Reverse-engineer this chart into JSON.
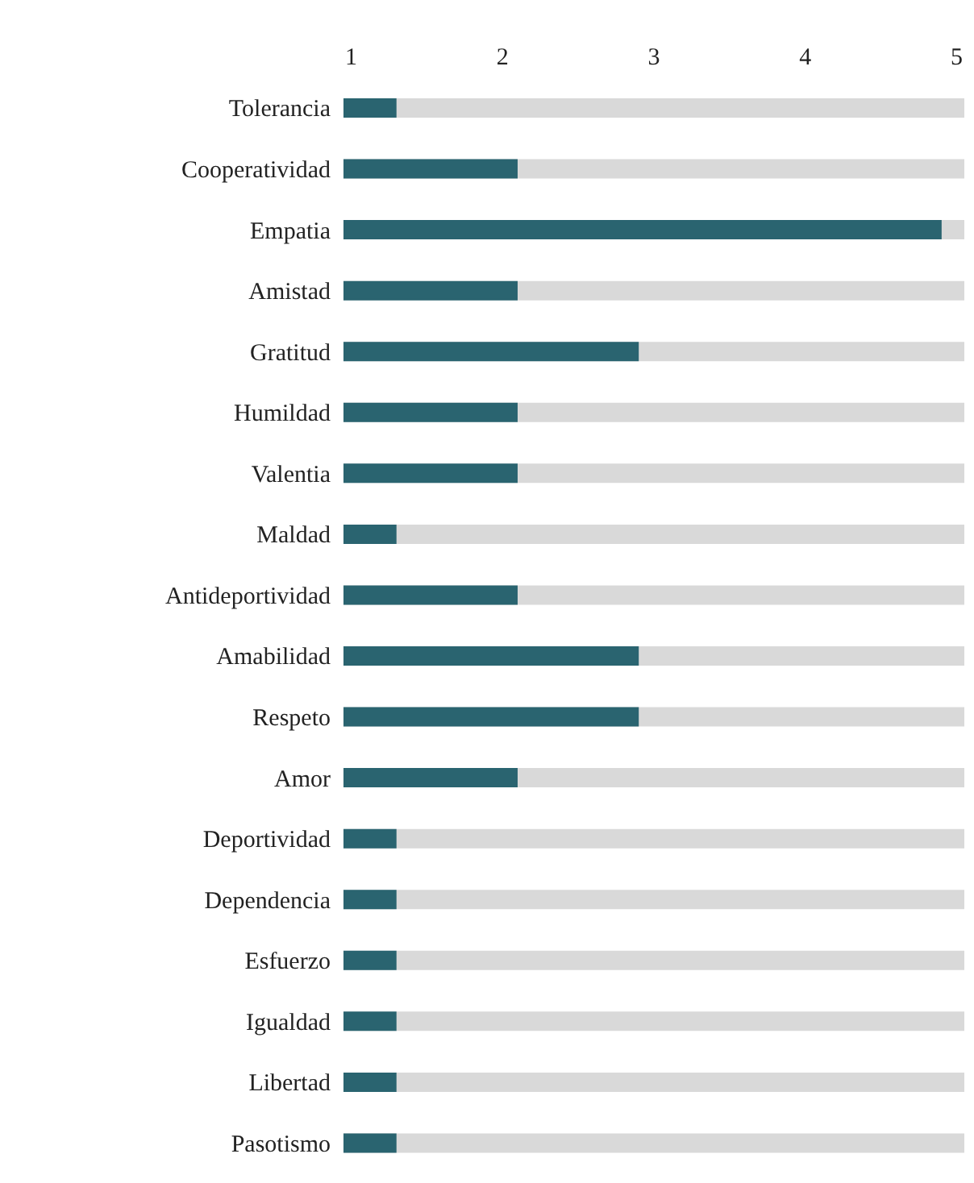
{
  "chart_data": {
    "type": "bar",
    "orientation": "horizontal",
    "categories": [
      "Tolerancia",
      "Cooperatividad",
      "Empatia",
      "Amistad",
      "Gratitud",
      "Humildad",
      "Valentia",
      "Maldad",
      "Antideportividad",
      "Amabilidad",
      "Respeto",
      "Amor",
      "Deportividad",
      "Dependencia",
      "Esfuerzo",
      "Igualdad",
      "Libertad",
      "Pasotismo"
    ],
    "values": [
      1.3,
      2.1,
      4.9,
      2.1,
      2.9,
      2.1,
      2.1,
      1.3,
      2.1,
      2.9,
      2.9,
      2.1,
      1.3,
      1.3,
      1.3,
      1.3,
      1.3,
      1.3
    ],
    "color": "#2a6470",
    "xlim": [
      0.95,
      5.05
    ],
    "xticks": [
      1,
      2,
      3,
      4,
      5
    ]
  }
}
